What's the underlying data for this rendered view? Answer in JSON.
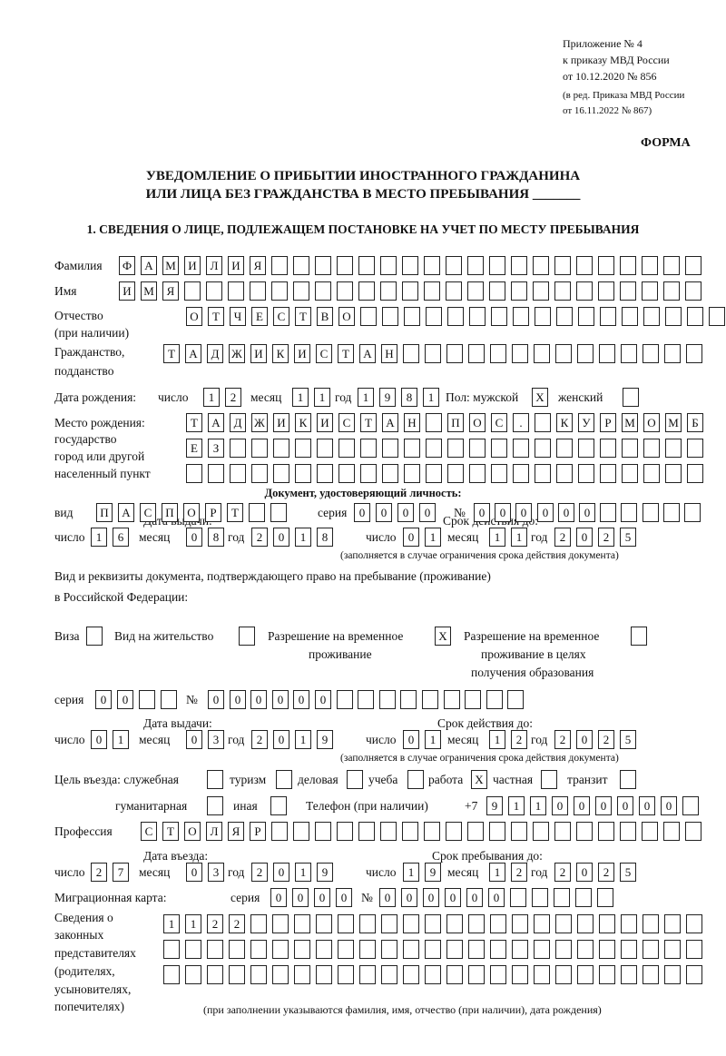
{
  "header": {
    "appendix": [
      "Приложение № 4",
      "к приказу МВД России",
      "от 10.12.2020 № 856"
    ],
    "edition": [
      "(в ред. Приказа МВД России",
      "от 16.11.2022 № 867)"
    ],
    "form_label": "ФОРМА",
    "title_line1": "УВЕДОМЛЕНИЕ О ПРИБЫТИИ ИНОСТРАННОГО ГРАЖДАНИНА",
    "title_line2": "ИЛИ ЛИЦА БЕЗ ГРАЖДАНСТВА В МЕСТО ПРЕБЫВАНИЯ _______",
    "section1": "1. СВЕДЕНИЯ О ЛИЦЕ, ПОДЛЕЖАЩЕМ ПОСТАНОВКЕ НА УЧЕТ ПО МЕСТУ ПРЕБЫВАНИЯ"
  },
  "labels": {
    "surname": "Фамилия",
    "name": "Имя",
    "patronymic": "Отчество",
    "patronymic2": "(при наличии)",
    "citizenship": "Гражданство,",
    "citizenship2": "подданство",
    "birth_date": "Дата рождения:",
    "day": "число",
    "month": "месяц",
    "year": "год",
    "sex": "Пол: мужской",
    "female": "женский",
    "birth_place": [
      "Место рождения:",
      "государство",
      "город или другой",
      "населенный пункт"
    ],
    "id_doc": "Документ, удостоверяющий личность:",
    "kind": "вид",
    "series": "серия",
    "number": "№",
    "issue_date": "Дата выдачи:",
    "valid_until": "Срок действия до:",
    "valid_note": "(заполняется в случае ограничения срока действия документа)",
    "stay_doc1": "Вид и реквизиты документа, подтверждающего право на пребывание (проживание)",
    "stay_doc2": "в Российской Федерации:",
    "visa": "Виза",
    "residence": "Вид на жительство",
    "temp": [
      "Разрешение на временное",
      "проживание"
    ],
    "temp_edu": [
      "Разрешение на временное",
      "проживание в целях",
      "получения образования"
    ],
    "purpose": "Цель въезда: служебная",
    "tourism": "туризм",
    "business": "деловая",
    "study": "учеба",
    "work": "работа",
    "private": "частная",
    "transit": "транзит",
    "humanitarian": "гуманитарная",
    "other": "иная",
    "phone": "Телефон (при наличии)",
    "phone_prefix": "+7",
    "profession": "Профессия",
    "entry_date": "Дата въезда:",
    "stay_until": "Срок пребывания до:",
    "migration_card": "Миграционная карта:",
    "reps": [
      "Сведения о",
      "законных",
      "представителях",
      "(родителях,",
      "усыновителях,",
      "попечителях)"
    ],
    "reps_note": "(при заполнении указываются фамилия, имя, отчество (при наличии), дата рождения)"
  },
  "fields": {
    "surname": [
      "Ф",
      "А",
      "М",
      "И",
      "Л",
      "И",
      "Я",
      "",
      "",
      "",
      "",
      "",
      "",
      "",
      "",
      "",
      "",
      "",
      "",
      "",
      "",
      "",
      "",
      "",
      "",
      "",
      ""
    ],
    "name": [
      "И",
      "М",
      "Я",
      "",
      "",
      "",
      "",
      "",
      "",
      "",
      "",
      "",
      "",
      "",
      "",
      "",
      "",
      "",
      "",
      "",
      "",
      "",
      "",
      "",
      "",
      "",
      ""
    ],
    "patronymic": [
      "О",
      "Т",
      "Ч",
      "Е",
      "С",
      "Т",
      "В",
      "О",
      "",
      "",
      "",
      "",
      "",
      "",
      "",
      "",
      "",
      "",
      "",
      "",
      "",
      "",
      "",
      "",
      ""
    ],
    "citizenship": [
      "Т",
      "А",
      "Д",
      "Ж",
      "И",
      "К",
      "И",
      "С",
      "Т",
      "А",
      "Н",
      "",
      "",
      "",
      "",
      "",
      "",
      "",
      "",
      "",
      "",
      "",
      "",
      "",
      ""
    ],
    "birth_day": [
      "1",
      "2"
    ],
    "birth_month": [
      "1",
      "1"
    ],
    "birth_year": [
      "1",
      "9",
      "8",
      "1"
    ],
    "sex_male": [
      "X"
    ],
    "sex_female": [
      ""
    ],
    "birth_place1": [
      "Т",
      "А",
      "Д",
      "Ж",
      "И",
      "К",
      "И",
      "С",
      "Т",
      "А",
      "Н",
      "",
      "П",
      "О",
      "С",
      ".",
      "",
      "К",
      "У",
      "Р",
      "М",
      "О",
      "М",
      "Б"
    ],
    "birth_place2": [
      "Е",
      "З",
      "",
      "",
      "",
      "",
      "",
      "",
      "",
      "",
      "",
      "",
      "",
      "",
      "",
      "",
      "",
      "",
      "",
      "",
      "",
      "",
      "",
      ""
    ],
    "birth_place3": [
      "",
      "",
      "",
      "",
      "",
      "",
      "",
      "",
      "",
      "",
      "",
      "",
      "",
      "",
      "",
      "",
      "",
      "",
      "",
      "",
      "",
      "",
      "",
      ""
    ],
    "id_kind": [
      "П",
      "А",
      "С",
      "П",
      "О",
      "Р",
      "Т",
      "",
      ""
    ],
    "id_series": [
      "0",
      "0",
      "0",
      "0"
    ],
    "id_number": [
      "0",
      "0",
      "0",
      "0",
      "0",
      "0",
      "",
      "",
      "",
      "",
      ""
    ],
    "id_issue_day": [
      "1",
      "6"
    ],
    "id_issue_month": [
      "0",
      "8"
    ],
    "id_issue_year": [
      "2",
      "0",
      "1",
      "8"
    ],
    "id_valid_day": [
      "0",
      "1"
    ],
    "id_valid_month": [
      "1",
      "1"
    ],
    "id_valid_year": [
      "2",
      "0",
      "2",
      "5"
    ],
    "visa": [
      ""
    ],
    "residence": [
      ""
    ],
    "temp": [
      "X"
    ],
    "temp_edu": [
      ""
    ],
    "stay_series": [
      "0",
      "0",
      "",
      ""
    ],
    "stay_number": [
      "0",
      "0",
      "0",
      "0",
      "0",
      "0",
      "",
      "",
      "",
      "",
      "",
      "",
      "",
      "",
      ""
    ],
    "stay_issue_day": [
      "0",
      "1"
    ],
    "stay_issue_month": [
      "0",
      "3"
    ],
    "stay_issue_year": [
      "2",
      "0",
      "1",
      "9"
    ],
    "stay_valid_day": [
      "0",
      "1"
    ],
    "stay_valid_month": [
      "1",
      "2"
    ],
    "stay_valid_year": [
      "2",
      "0",
      "2",
      "5"
    ],
    "p_service": [
      ""
    ],
    "p_tourism": [
      ""
    ],
    "p_business": [
      ""
    ],
    "p_study": [
      ""
    ],
    "p_work": [
      "X"
    ],
    "p_private": [
      ""
    ],
    "p_transit": [
      ""
    ],
    "p_humanitarian": [
      ""
    ],
    "p_other": [
      ""
    ],
    "phone": [
      "9",
      "1",
      "1",
      "0",
      "0",
      "0",
      "0",
      "0",
      "0",
      ""
    ],
    "profession": [
      "С",
      "Т",
      "О",
      "Л",
      "Я",
      "Р",
      "",
      "",
      "",
      "",
      "",
      "",
      "",
      "",
      "",
      "",
      "",
      "",
      "",
      "",
      "",
      "",
      "",
      "",
      "",
      ""
    ],
    "entry_day": [
      "2",
      "7"
    ],
    "entry_month": [
      "0",
      "3"
    ],
    "entry_year": [
      "2",
      "0",
      "1",
      "9"
    ],
    "until_day": [
      "1",
      "9"
    ],
    "until_month": [
      "1",
      "2"
    ],
    "until_year": [
      "2",
      "0",
      "2",
      "5"
    ],
    "mc_series": [
      "0",
      "0",
      "0",
      "0"
    ],
    "mc_number": [
      "0",
      "0",
      "0",
      "0",
      "0",
      "0",
      "",
      "",
      "",
      "",
      ""
    ],
    "reps1": [
      "1",
      "1",
      "2",
      "2",
      "",
      "",
      "",
      "",
      "",
      "",
      "",
      "",
      "",
      "",
      "",
      "",
      "",
      "",
      "",
      "",
      "",
      "",
      "",
      "",
      ""
    ],
    "reps2": [
      "",
      "",
      "",
      "",
      "",
      "",
      "",
      "",
      "",
      "",
      "",
      "",
      "",
      "",
      "",
      "",
      "",
      "",
      "",
      "",
      "",
      "",
      "",
      "",
      ""
    ],
    "reps3": [
      "",
      "",
      "",
      "",
      "",
      "",
      "",
      "",
      "",
      "",
      "",
      "",
      "",
      "",
      "",
      "",
      "",
      "",
      "",
      "",
      "",
      "",
      "",
      "",
      ""
    ]
  }
}
